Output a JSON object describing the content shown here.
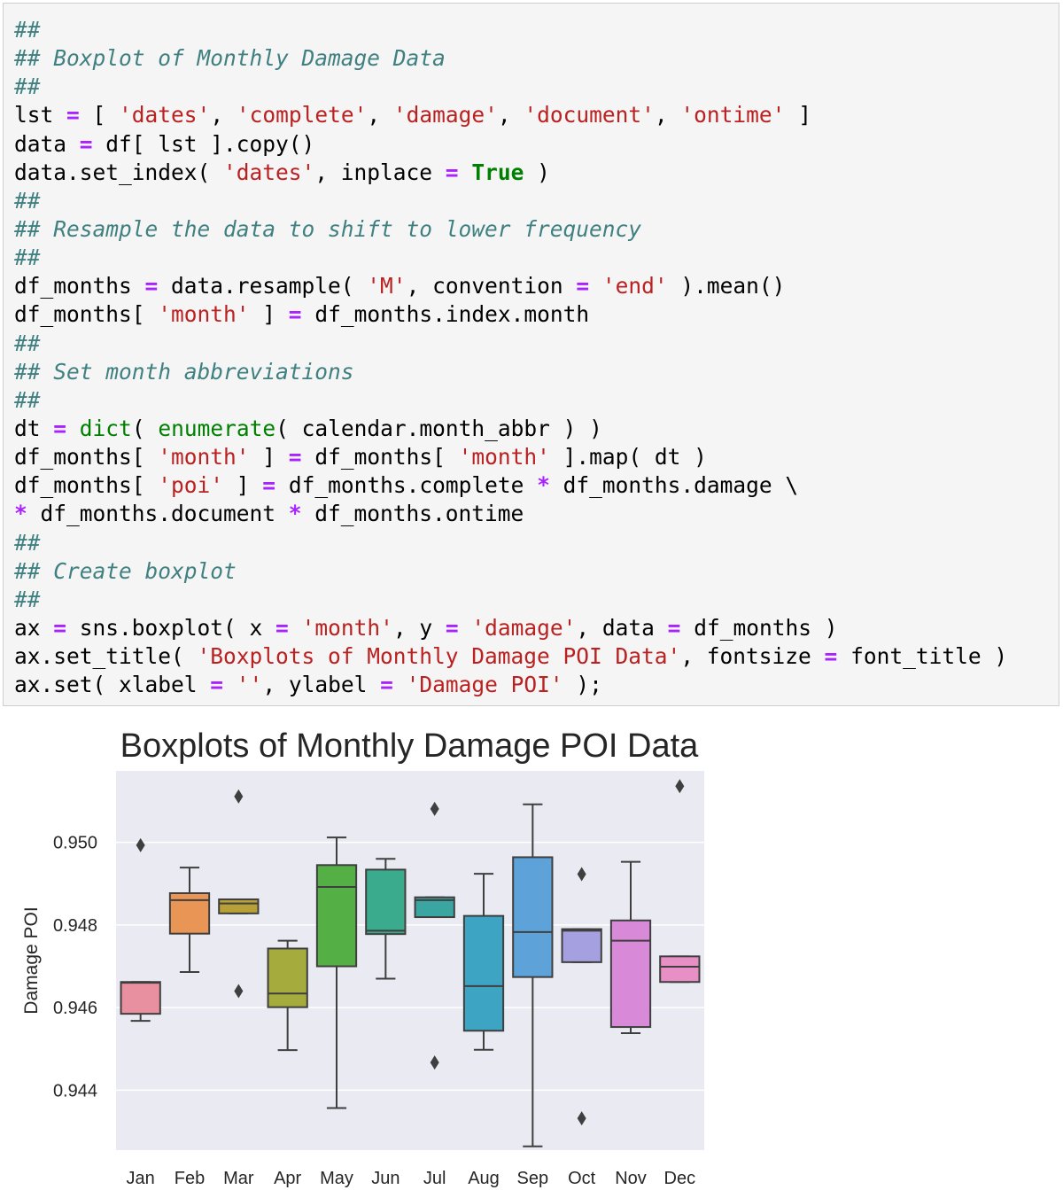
{
  "code_cell": {
    "lines": [
      [
        [
          "comment",
          "##"
        ]
      ],
      [
        [
          "comment",
          "## Boxplot of Monthly Damage Data"
        ]
      ],
      [
        [
          "comment",
          "##"
        ]
      ],
      [
        [
          "plain",
          "lst "
        ],
        [
          "op",
          "="
        ],
        [
          "plain",
          " [ "
        ],
        [
          "string",
          "'dates'"
        ],
        [
          "plain",
          ", "
        ],
        [
          "string",
          "'complete'"
        ],
        [
          "plain",
          ", "
        ],
        [
          "string",
          "'damage'"
        ],
        [
          "plain",
          ", "
        ],
        [
          "string",
          "'document'"
        ],
        [
          "plain",
          ", "
        ],
        [
          "string",
          "'ontime'"
        ],
        [
          "plain",
          " ]"
        ]
      ],
      [
        [
          "plain",
          "data "
        ],
        [
          "op",
          "="
        ],
        [
          "plain",
          " df[ lst ].copy()"
        ]
      ],
      [
        [
          "plain",
          "data.set_index( "
        ],
        [
          "string",
          "'dates'"
        ],
        [
          "plain",
          ", inplace "
        ],
        [
          "op",
          "="
        ],
        [
          "plain",
          " "
        ],
        [
          "keyword",
          "True"
        ],
        [
          "plain",
          " )"
        ]
      ],
      [
        [
          "comment",
          "##"
        ]
      ],
      [
        [
          "comment",
          "## Resample the data to shift to lower frequency"
        ]
      ],
      [
        [
          "comment",
          "##"
        ]
      ],
      [
        [
          "plain",
          "df_months "
        ],
        [
          "op",
          "="
        ],
        [
          "plain",
          " data.resample( "
        ],
        [
          "string",
          "'M'"
        ],
        [
          "plain",
          ", convention "
        ],
        [
          "op",
          "="
        ],
        [
          "plain",
          " "
        ],
        [
          "string",
          "'end'"
        ],
        [
          "plain",
          " ).mean()"
        ]
      ],
      [
        [
          "plain",
          "df_months[ "
        ],
        [
          "string",
          "'month'"
        ],
        [
          "plain",
          " ] "
        ],
        [
          "op",
          "="
        ],
        [
          "plain",
          " df_months.index.month"
        ]
      ],
      [
        [
          "comment",
          "##"
        ]
      ],
      [
        [
          "comment",
          "## Set month abbreviations"
        ]
      ],
      [
        [
          "comment",
          "##"
        ]
      ],
      [
        [
          "plain",
          "dt "
        ],
        [
          "op",
          "="
        ],
        [
          "plain",
          " "
        ],
        [
          "builtin",
          "dict"
        ],
        [
          "plain",
          "( "
        ],
        [
          "builtin",
          "enumerate"
        ],
        [
          "plain",
          "( calendar.month_abbr ) )"
        ]
      ],
      [
        [
          "plain",
          "df_months[ "
        ],
        [
          "string",
          "'month'"
        ],
        [
          "plain",
          " ] "
        ],
        [
          "op",
          "="
        ],
        [
          "plain",
          " df_months[ "
        ],
        [
          "string",
          "'month'"
        ],
        [
          "plain",
          " ].map( dt )"
        ]
      ],
      [
        [
          "plain",
          "df_months[ "
        ],
        [
          "string",
          "'poi'"
        ],
        [
          "plain",
          " ] "
        ],
        [
          "op",
          "="
        ],
        [
          "plain",
          " df_months.complete "
        ],
        [
          "op",
          "*"
        ],
        [
          "plain",
          " df_months.damage \\"
        ]
      ],
      [
        [
          "op",
          "*"
        ],
        [
          "plain",
          " df_months.document "
        ],
        [
          "op",
          "*"
        ],
        [
          "plain",
          " df_months.ontime"
        ]
      ],
      [
        [
          "comment",
          "##"
        ]
      ],
      [
        [
          "comment",
          "## Create boxplot"
        ]
      ],
      [
        [
          "comment",
          "##"
        ]
      ],
      [
        [
          "plain",
          "ax "
        ],
        [
          "op",
          "="
        ],
        [
          "plain",
          " sns.boxplot( x "
        ],
        [
          "op",
          "="
        ],
        [
          "plain",
          " "
        ],
        [
          "string",
          "'month'"
        ],
        [
          "plain",
          ", y "
        ],
        [
          "op",
          "="
        ],
        [
          "plain",
          " "
        ],
        [
          "string",
          "'damage'"
        ],
        [
          "plain",
          ", data "
        ],
        [
          "op",
          "="
        ],
        [
          "plain",
          " df_months )"
        ]
      ],
      [
        [
          "plain",
          "ax.set_title( "
        ],
        [
          "string",
          "'Boxplots of Monthly Damage POI Data'"
        ],
        [
          "plain",
          ", fontsize "
        ],
        [
          "op",
          "="
        ],
        [
          "plain",
          " font_title )"
        ]
      ],
      [
        [
          "plain",
          "ax.set( xlabel "
        ],
        [
          "op",
          "="
        ],
        [
          "plain",
          " "
        ],
        [
          "string",
          "''"
        ],
        [
          "plain",
          ", ylabel "
        ],
        [
          "op",
          "="
        ],
        [
          "plain",
          " "
        ],
        [
          "string",
          "'Damage POI'"
        ],
        [
          "plain",
          " );"
        ]
      ]
    ]
  },
  "colors": {
    "plot_background": "#eaeaf2",
    "grid": "#ffffff",
    "box_edge": "#3f3f3f",
    "text": "#262626"
  },
  "chart_data": {
    "type": "boxplot",
    "title": "Boxplots of Monthly Damage POI Data",
    "xlabel": "",
    "ylabel": "Damage POI",
    "ylim": [
      0.94255,
      0.95173
    ],
    "yticks": [
      0.944,
      0.946,
      0.948,
      0.95
    ],
    "ytick_labels": [
      "0.944",
      "0.946",
      "0.948",
      "0.950"
    ],
    "grid": true,
    "categories": [
      "Jan",
      "Feb",
      "Mar",
      "Apr",
      "May",
      "Jun",
      "Jul",
      "Aug",
      "Sep",
      "Oct",
      "Nov",
      "Dec"
    ],
    "boxes": [
      {
        "month": "Jan",
        "whisker_low": 0.94568,
        "q1": 0.94585,
        "median": 0.9466,
        "q3": 0.94662,
        "whisker_high": 0.94662,
        "outliers": [
          0.94993
        ],
        "color": "#e88fa0"
      },
      {
        "month": "Feb",
        "whisker_low": 0.94686,
        "q1": 0.94779,
        "median": 0.9486,
        "q3": 0.94877,
        "whisker_high": 0.94939,
        "outliers": [],
        "color": "#e89555"
      },
      {
        "month": "Mar",
        "whisker_low": 0.94828,
        "q1": 0.94828,
        "median": 0.94852,
        "q3": 0.94862,
        "whisker_high": 0.94862,
        "outliers": [
          0.95111,
          0.9464
        ],
        "color": "#b7a038"
      },
      {
        "month": "Apr",
        "whisker_low": 0.94497,
        "q1": 0.94601,
        "median": 0.94634,
        "q3": 0.94743,
        "whisker_high": 0.94762,
        "outliers": [],
        "color": "#a5ab3d"
      },
      {
        "month": "May",
        "whisker_low": 0.94357,
        "q1": 0.947,
        "median": 0.94892,
        "q3": 0.94945,
        "whisker_high": 0.95012,
        "outliers": [],
        "color": "#54b044"
      },
      {
        "month": "Jun",
        "whisker_low": 0.9467,
        "q1": 0.94778,
        "median": 0.94786,
        "q3": 0.94934,
        "whisker_high": 0.9496,
        "outliers": [],
        "color": "#3aab8c"
      },
      {
        "month": "Jul",
        "whisker_low": 0.94819,
        "q1": 0.94819,
        "median": 0.9486,
        "q3": 0.94867,
        "whisker_high": 0.94867,
        "outliers": [
          0.95081,
          0.94467
        ],
        "color": "#3ba6a1"
      },
      {
        "month": "Aug",
        "whisker_low": 0.94498,
        "q1": 0.94544,
        "median": 0.94652,
        "q3": 0.94822,
        "whisker_high": 0.94924,
        "outliers": [],
        "color": "#3ea4c4"
      },
      {
        "month": "Sep",
        "whisker_low": 0.94264,
        "q1": 0.94674,
        "median": 0.94783,
        "q3": 0.94964,
        "whisker_high": 0.95092,
        "outliers": [],
        "color": "#5da3da"
      },
      {
        "month": "Oct",
        "whisker_low": 0.9471,
        "q1": 0.9471,
        "median": 0.94786,
        "q3": 0.9479,
        "whisker_high": 0.9479,
        "outliers": [
          0.94923,
          0.94332
        ],
        "color": "#a5a0e0"
      },
      {
        "month": "Nov",
        "whisker_low": 0.94538,
        "q1": 0.94553,
        "median": 0.94762,
        "q3": 0.94811,
        "whisker_high": 0.94953,
        "outliers": [],
        "color": "#d88ad8"
      },
      {
        "month": "Dec",
        "whisker_low": 0.94662,
        "q1": 0.94662,
        "median": 0.94699,
        "q3": 0.94724,
        "whisker_high": 0.94724,
        "outliers": [
          0.95136
        ],
        "color": "#e88fc5"
      }
    ]
  }
}
